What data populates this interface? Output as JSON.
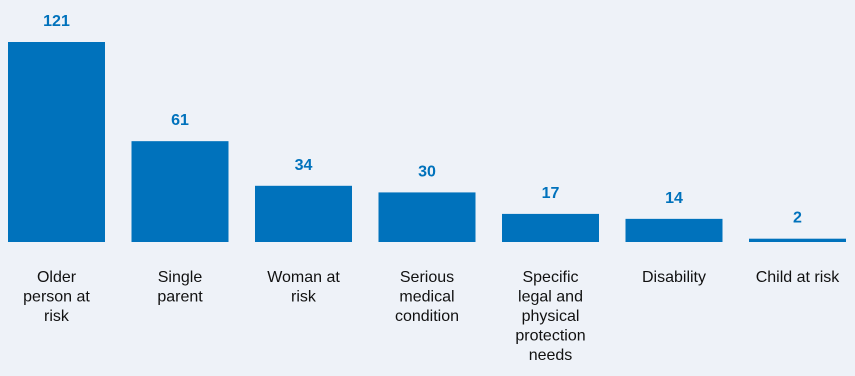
{
  "chart_data": {
    "type": "bar",
    "categories": [
      "Older person at risk",
      "Single parent",
      "Woman at risk",
      "Serious medical condition",
      "Specific legal and physical protection needs",
      "Disability",
      "Child at risk"
    ],
    "category_lines": [
      [
        "Older",
        "person at",
        "risk"
      ],
      [
        "Single",
        "parent"
      ],
      [
        "Woman at",
        "risk"
      ],
      [
        "Serious",
        "medical",
        "condition"
      ],
      [
        "Specific",
        "legal and",
        "physical",
        "protection",
        "needs"
      ],
      [
        "Disability"
      ],
      [
        "Child at risk"
      ]
    ],
    "values": [
      121,
      61,
      34,
      30,
      17,
      14,
      2
    ],
    "ylim": [
      0,
      121
    ],
    "grid": false,
    "legend": "none",
    "bar_color": "#0072bc",
    "label_color": "#0072bc",
    "text_color": "#111111",
    "background": "#eef2f8"
  }
}
